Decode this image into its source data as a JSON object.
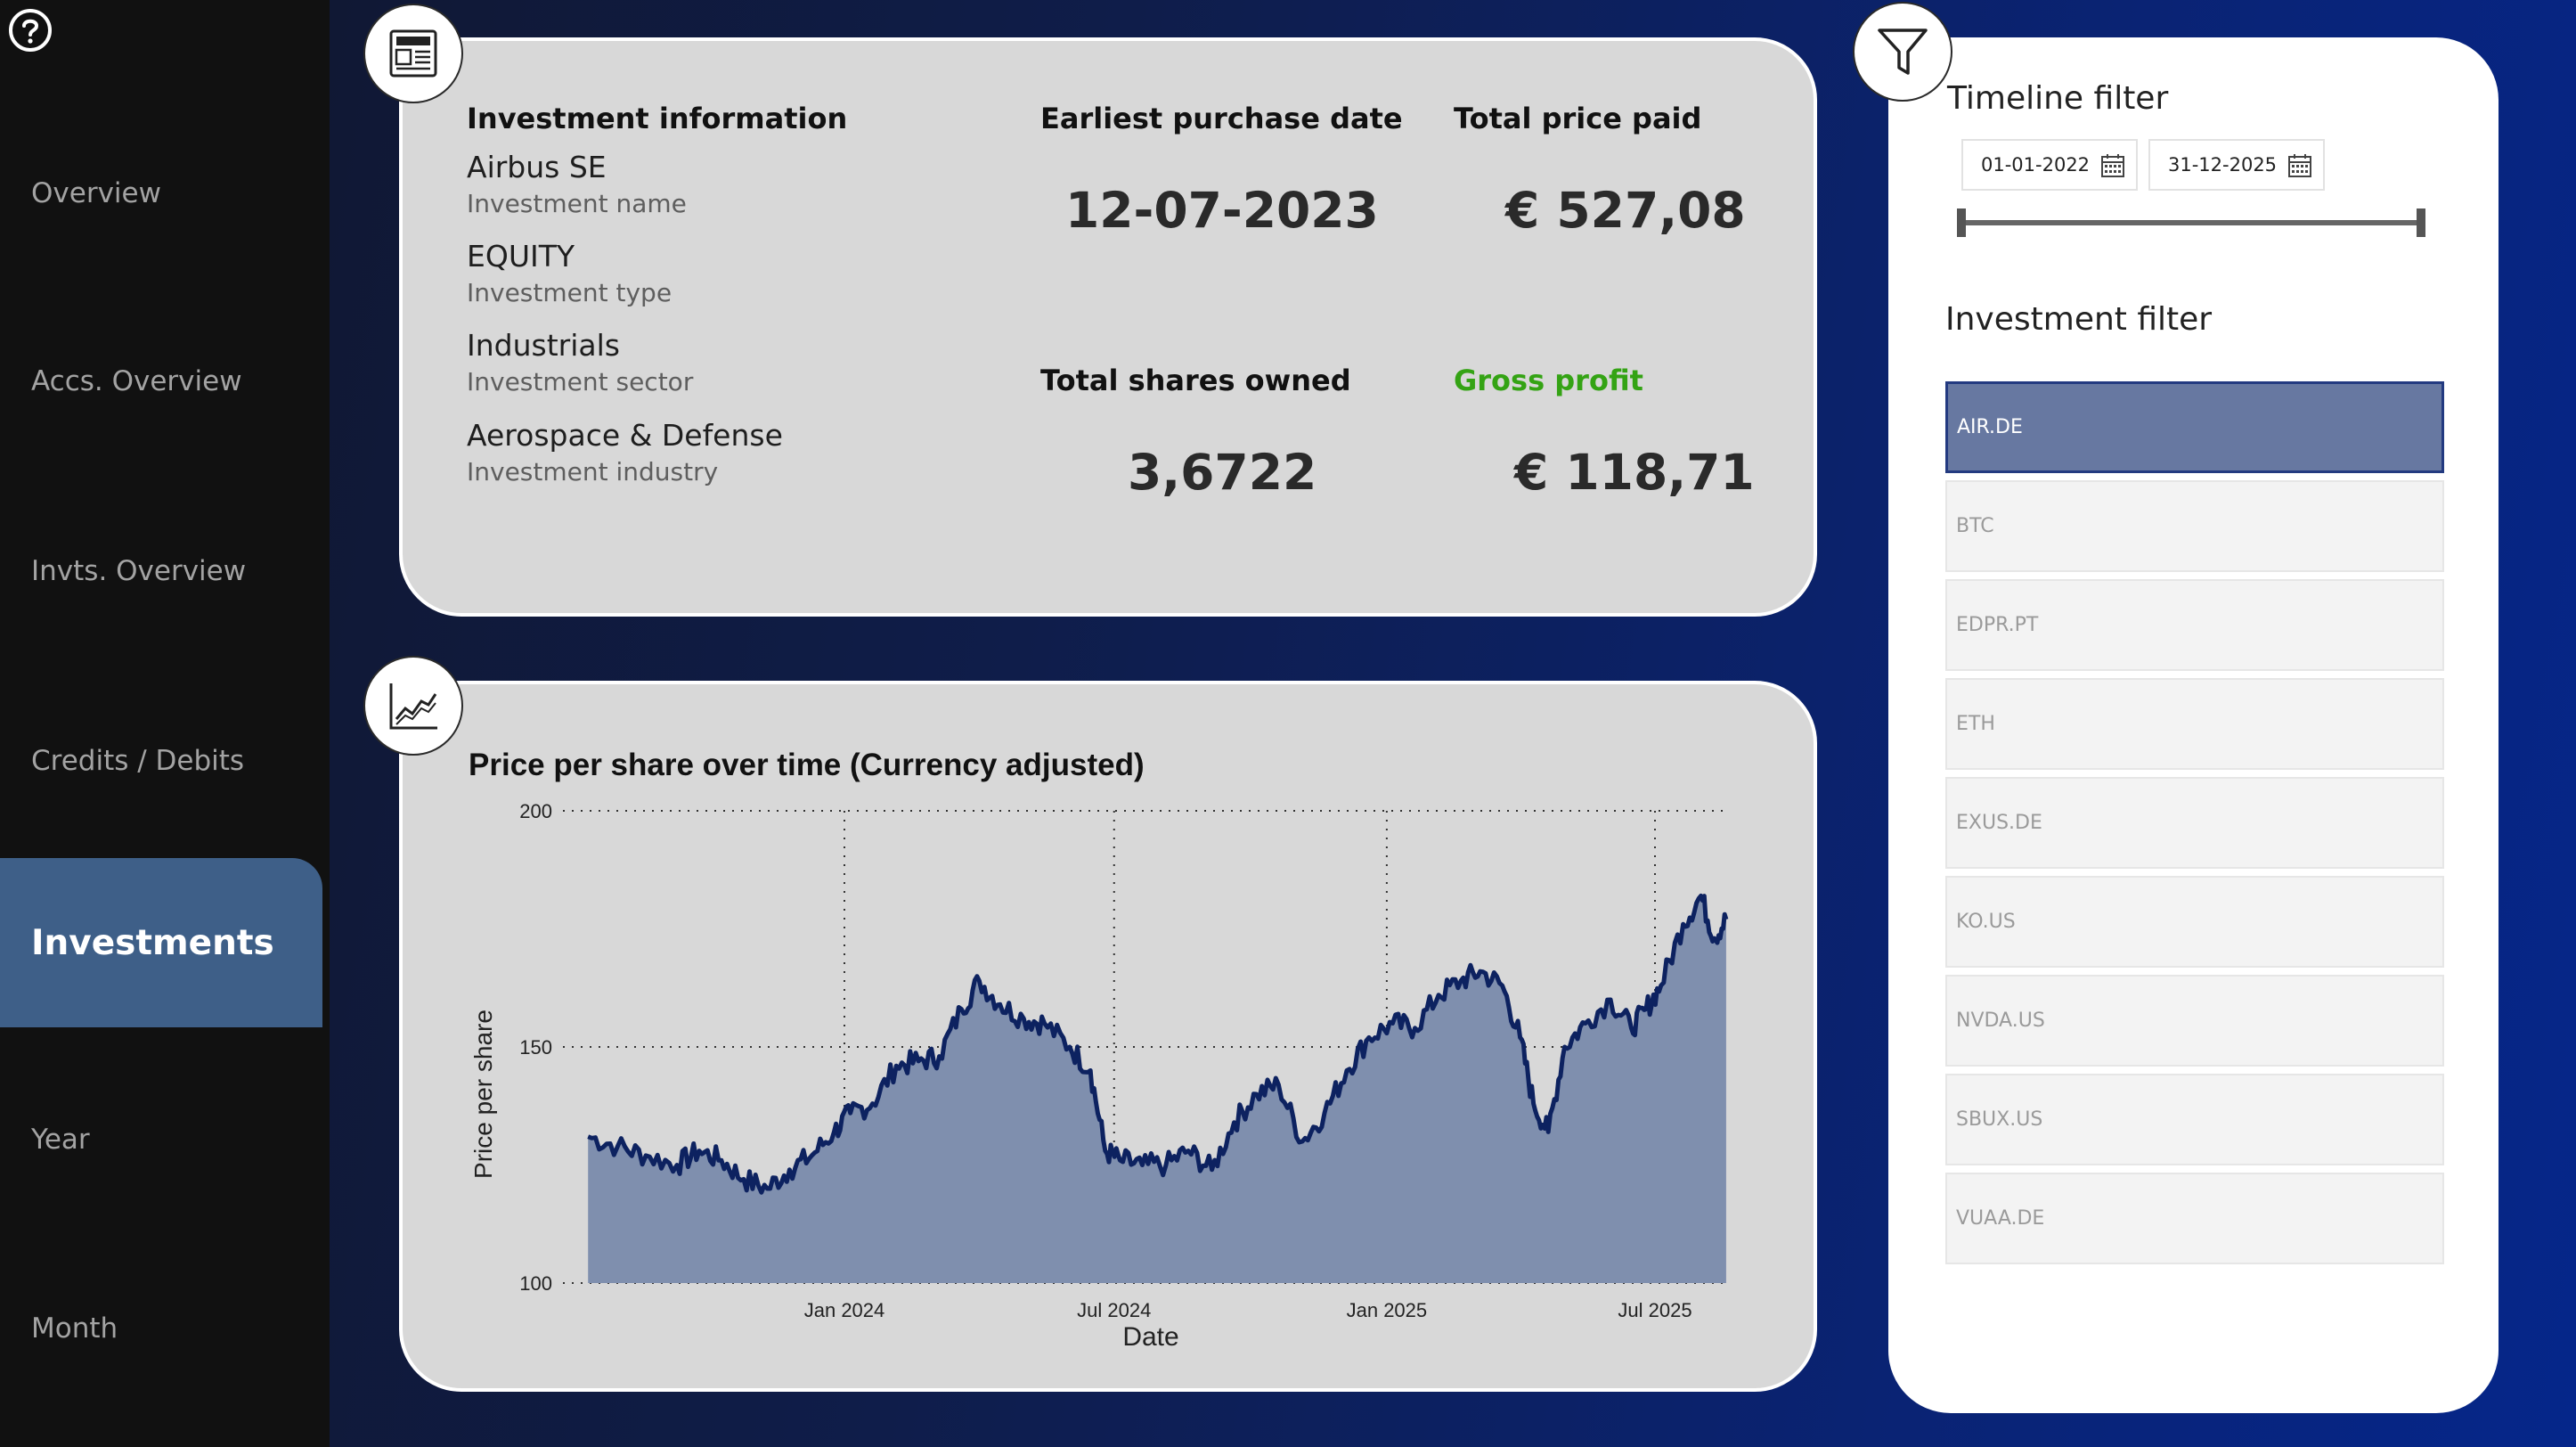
{
  "sidebar": {
    "items": [
      {
        "label": "Overview"
      },
      {
        "label": "Accs. Overview"
      },
      {
        "label": "Invts. Overview"
      },
      {
        "label": "Credits / Debits"
      },
      {
        "label": "Investments"
      },
      {
        "label": "Year"
      },
      {
        "label": "Month"
      }
    ],
    "active": "Investments"
  },
  "info": {
    "header": "Investment information",
    "name_value": "Airbus SE",
    "name_label": "Investment name",
    "type_value": "EQUITY",
    "type_label": "Investment type",
    "sector_value": "Industrials",
    "sector_label": "Investment sector",
    "industry_value": "Aerospace & Defense",
    "industry_label": "Investment industry",
    "purchase_label": "Earliest purchase date",
    "purchase_value": "12-07-2023",
    "price_label": "Total price paid",
    "price_value": "€  527,08",
    "shares_label": "Total shares owned",
    "shares_value": "3,6722",
    "profit_label": "Gross profit",
    "profit_value": "€  118,71"
  },
  "chart_data": {
    "type": "area",
    "title": "Price per share over time (Currency adjusted)",
    "xlabel": "Date",
    "ylabel": "Price per share",
    "ylim": [
      100,
      200
    ],
    "yticks": [
      "100",
      "150",
      "200"
    ],
    "xticks": [
      "Jan 2024",
      "Jul 2024",
      "Jan 2025",
      "Jul 2025"
    ],
    "grid": true,
    "colors": {
      "line": "#0d2260",
      "fill": "#7f8fae"
    },
    "series": [
      {
        "x": [
          "2023-07-12",
          "2023-08-01",
          "2023-08-20",
          "2023-09-10",
          "2023-09-25",
          "2023-10-10",
          "2023-10-25",
          "2023-11-10",
          "2023-11-25",
          "2023-12-10",
          "2023-12-25",
          "2024-01-05",
          "2024-01-20",
          "2024-02-05",
          "2024-02-20",
          "2024-03-05",
          "2024-03-20",
          "2024-04-01",
          "2024-04-15",
          "2024-05-01",
          "2024-05-15",
          "2024-06-01",
          "2024-06-15",
          "2024-06-25",
          "2024-07-05",
          "2024-07-20",
          "2024-08-05",
          "2024-08-20",
          "2024-09-05",
          "2024-09-20",
          "2024-10-05",
          "2024-10-20",
          "2024-11-05",
          "2024-11-20",
          "2024-12-05",
          "2024-12-20",
          "2025-01-05",
          "2025-01-20",
          "2025-02-05",
          "2025-02-20",
          "2025-03-05",
          "2025-03-20",
          "2025-04-01",
          "2025-04-10",
          "2025-04-20",
          "2025-05-01",
          "2025-05-15",
          "2025-06-01",
          "2025-06-15",
          "2025-06-25",
          "2025-07-05",
          "2025-07-20",
          "2025-08-01",
          "2025-08-10",
          "2025-08-18"
        ],
        "y": [
          131,
          129,
          127,
          125,
          128,
          126,
          122,
          120,
          124,
          127,
          132,
          136,
          138,
          146,
          147,
          148,
          158,
          164,
          159,
          156,
          155,
          150,
          145,
          128,
          126,
          125,
          125,
          128,
          124,
          134,
          140,
          142,
          130,
          136,
          145,
          152,
          155,
          154,
          161,
          164,
          166,
          163,
          152,
          138,
          132,
          150,
          155,
          160,
          154,
          158,
          163,
          176,
          182,
          173,
          177
        ]
      }
    ]
  },
  "timeline": {
    "title": "Timeline filter",
    "start": "01-01-2022",
    "end": "31-12-2025"
  },
  "investment_filter": {
    "title": "Investment filter",
    "items": [
      "AIR.DE",
      "BTC",
      "EDPR.PT",
      "ETH",
      "EXUS.DE",
      "KO.US",
      "NVDA.US",
      "SBUX.US",
      "VUAA.DE"
    ],
    "selected": "AIR.DE"
  }
}
